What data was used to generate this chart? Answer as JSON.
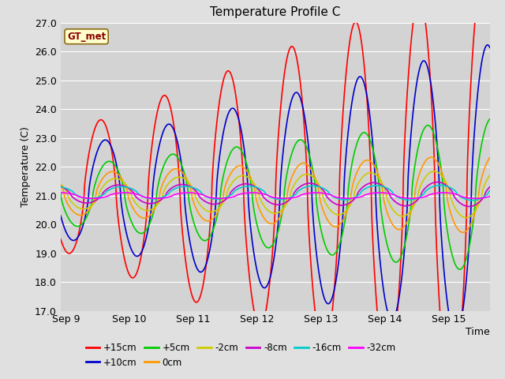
{
  "title": "Temperature Profile C",
  "xlabel": "Time",
  "ylabel": "Temperature (C)",
  "ylim": [
    17.0,
    27.0
  ],
  "yticks": [
    17.0,
    18.0,
    19.0,
    20.0,
    21.0,
    22.0,
    23.0,
    24.0,
    25.0,
    26.0,
    27.0
  ],
  "xtick_labels": [
    "Sep 9",
    "Sep 10",
    "Sep 11",
    "Sep 12",
    "Sep 13",
    "Sep 14",
    "Sep 15"
  ],
  "annotation_text": "GT_met",
  "fig_bg": "#e0e0e0",
  "plot_bg": "#d3d3d3",
  "series": [
    {
      "label": "+15cm",
      "color": "#ff0000",
      "mean": 21.1,
      "amp0": 2.0,
      "amp_grow": 0.85,
      "phase": 0.58,
      "depth_scale": 1.0
    },
    {
      "label": "+10cm",
      "color": "#0000cc",
      "mean": 21.05,
      "amp0": 1.5,
      "amp_grow": 0.55,
      "phase": 0.72,
      "depth_scale": 1.0
    },
    {
      "label": "+5cm",
      "color": "#00cc00",
      "mean": 21.0,
      "amp0": 1.0,
      "amp_grow": 0.25,
      "phase": 0.85,
      "depth_scale": 1.0
    },
    {
      "label": "0cm",
      "color": "#ff9900",
      "mean": 21.05,
      "amp0": 0.7,
      "amp_grow": 0.1,
      "phase": 0.95,
      "depth_scale": 1.0
    },
    {
      "label": "-2cm",
      "color": "#cccc00",
      "mean": 21.05,
      "amp0": 0.5,
      "amp_grow": 0.05,
      "phase": 1.05,
      "depth_scale": 1.0
    },
    {
      "label": "-8cm",
      "color": "#cc00cc",
      "mean": 21.05,
      "amp0": 0.3,
      "amp_grow": 0.02,
      "phase": 1.15,
      "depth_scale": 1.0
    },
    {
      "label": "-16cm",
      "color": "#00cccc",
      "mean": 21.1,
      "amp0": 0.2,
      "amp_grow": 0.01,
      "phase": 1.25,
      "depth_scale": 1.0
    },
    {
      "label": "-32cm",
      "color": "#ff00ff",
      "mean": 21.0,
      "amp0": 0.1,
      "amp_grow": 0.0,
      "phase": 1.35,
      "depth_scale": 1.0
    }
  ]
}
